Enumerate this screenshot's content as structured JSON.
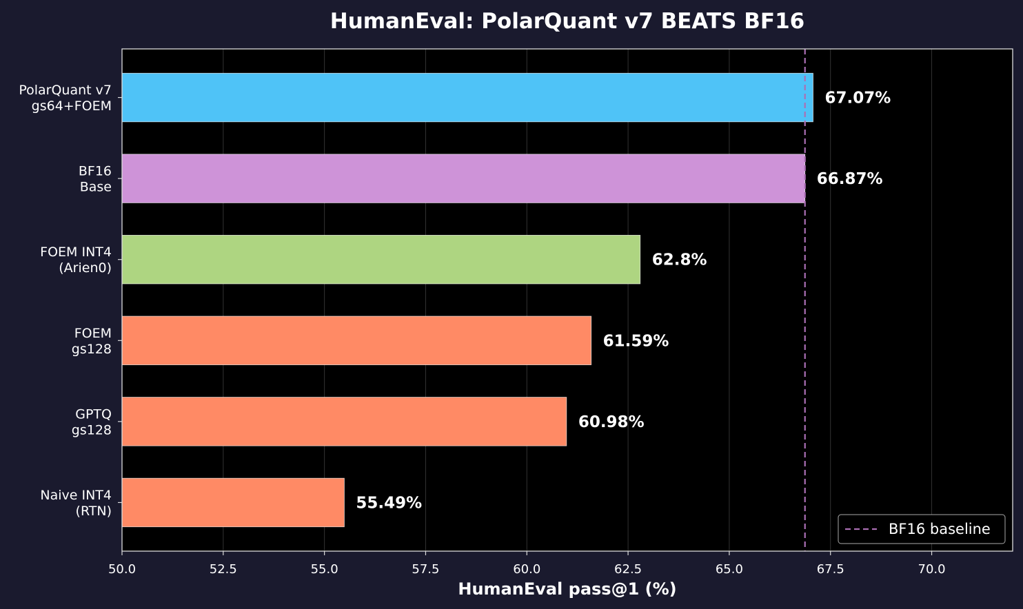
{
  "chart_data": {
    "type": "bar",
    "orientation": "horizontal",
    "title": "HumanEval: PolarQuant v7 BEATS BF16",
    "xlabel": "HumanEval pass@1 (%)",
    "ylabel": "",
    "xlim": [
      50,
      72
    ],
    "xticks": [
      50.0,
      52.5,
      55.0,
      57.5,
      60.0,
      62.5,
      65.0,
      67.5,
      70.0
    ],
    "grid": "vertical",
    "categories": [
      [
        "PolarQuant v7",
        "gs64+FOEM"
      ],
      [
        "BF16",
        "Base"
      ],
      [
        "FOEM INT4",
        "(Arien0)"
      ],
      [
        "FOEM",
        "gs128"
      ],
      [
        "GPTQ",
        "gs128"
      ],
      [
        "Naive INT4",
        "(RTN)"
      ]
    ],
    "values": [
      67.07,
      66.87,
      62.8,
      61.59,
      60.98,
      55.49
    ],
    "value_labels": [
      "67.07%",
      "66.87%",
      "62.8%",
      "61.59%",
      "60.98%",
      "55.49%"
    ],
    "bar_colors": [
      "#4fc3f7",
      "#ce93d8",
      "#aed581",
      "#ff8a65",
      "#ff8a65",
      "#ff8a65"
    ],
    "baseline": {
      "value": 66.87,
      "label": "BF16 baseline",
      "color": "#ab6fb5",
      "style": "dashed"
    },
    "legend_position": "bottom-right",
    "colors": {
      "background": "#1a1a2e",
      "plot_background": "#000000",
      "text": "#ffffff",
      "axis": "#dddddd"
    }
  }
}
